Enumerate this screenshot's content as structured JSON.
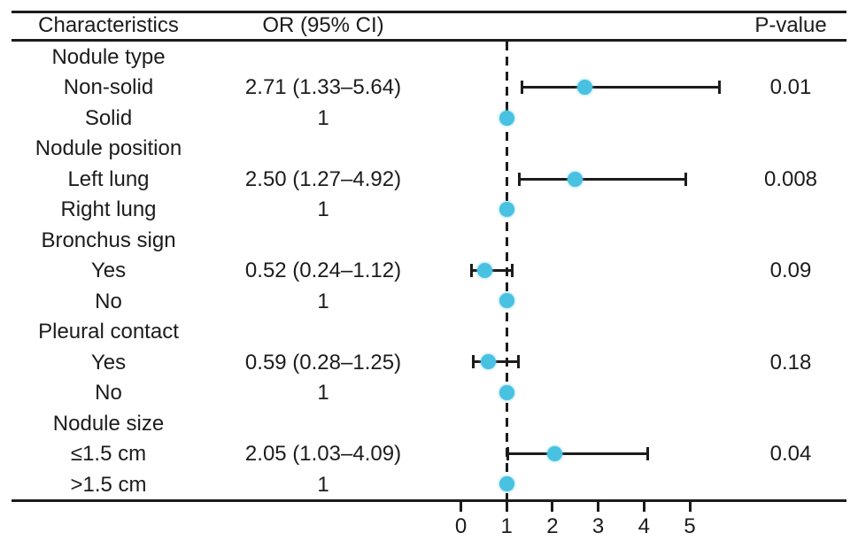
{
  "header": {
    "characteristics": "Characteristics",
    "or_ci": "OR (95% CI)",
    "p_value": "P-value"
  },
  "colors": {
    "marker": "#49c1e1",
    "line": "#1c1c1c",
    "background": "#ffffff"
  },
  "chart_data": {
    "type": "forest",
    "title": "",
    "xlabel": "",
    "x_ticks": [
      "0",
      "1",
      "2",
      "3",
      "4",
      "5"
    ],
    "x_tick_values": [
      0,
      1,
      2,
      3,
      4,
      5
    ],
    "xlim": [
      0,
      5.8
    ],
    "reference_line": 1,
    "reference_line_style": "dashed",
    "legend": "none",
    "grid": false,
    "rows": [
      {
        "kind": "group",
        "label": "Nodule type",
        "or_text": "",
        "p_text": ""
      },
      {
        "kind": "item",
        "label": "Non-solid",
        "or_text": "2.71 (1.33–5.64)",
        "p_text": "0.01",
        "estimate": 2.71,
        "ci_low": 1.33,
        "ci_high": 5.64
      },
      {
        "kind": "ref",
        "label": "Solid",
        "or_text": "1",
        "p_text": "",
        "estimate": 1
      },
      {
        "kind": "group",
        "label": "Nodule position",
        "or_text": "",
        "p_text": ""
      },
      {
        "kind": "item",
        "label": "Left lung",
        "or_text": "2.50 (1.27–4.92)",
        "p_text": "0.008",
        "estimate": 2.5,
        "ci_low": 1.27,
        "ci_high": 4.92
      },
      {
        "kind": "ref",
        "label": "Right lung",
        "or_text": "1",
        "p_text": "",
        "estimate": 1
      },
      {
        "kind": "group",
        "label": "Bronchus sign",
        "or_text": "",
        "p_text": ""
      },
      {
        "kind": "item",
        "label": "Yes",
        "or_text": "0.52 (0.24–1.12)",
        "p_text": "0.09",
        "estimate": 0.52,
        "ci_low": 0.24,
        "ci_high": 1.12
      },
      {
        "kind": "ref",
        "label": "No",
        "or_text": "1",
        "p_text": "",
        "estimate": 1
      },
      {
        "kind": "group",
        "label": "Pleural contact",
        "or_text": "",
        "p_text": ""
      },
      {
        "kind": "item",
        "label": "Yes",
        "or_text": "0.59 (0.28–1.25)",
        "p_text": "0.18",
        "estimate": 0.59,
        "ci_low": 0.28,
        "ci_high": 1.25
      },
      {
        "kind": "ref",
        "label": "No",
        "or_text": "1",
        "p_text": "",
        "estimate": 1
      },
      {
        "kind": "group",
        "label": "Nodule size",
        "or_text": "",
        "p_text": ""
      },
      {
        "kind": "item",
        "label": "≤1.5 cm",
        "or_text": "2.05 (1.03–4.09)",
        "p_text": "0.04",
        "estimate": 2.05,
        "ci_low": 1.03,
        "ci_high": 4.09
      },
      {
        "kind": "ref",
        "label": ">1.5 cm",
        "or_text": "1",
        "p_text": "",
        "estimate": 1
      }
    ]
  }
}
